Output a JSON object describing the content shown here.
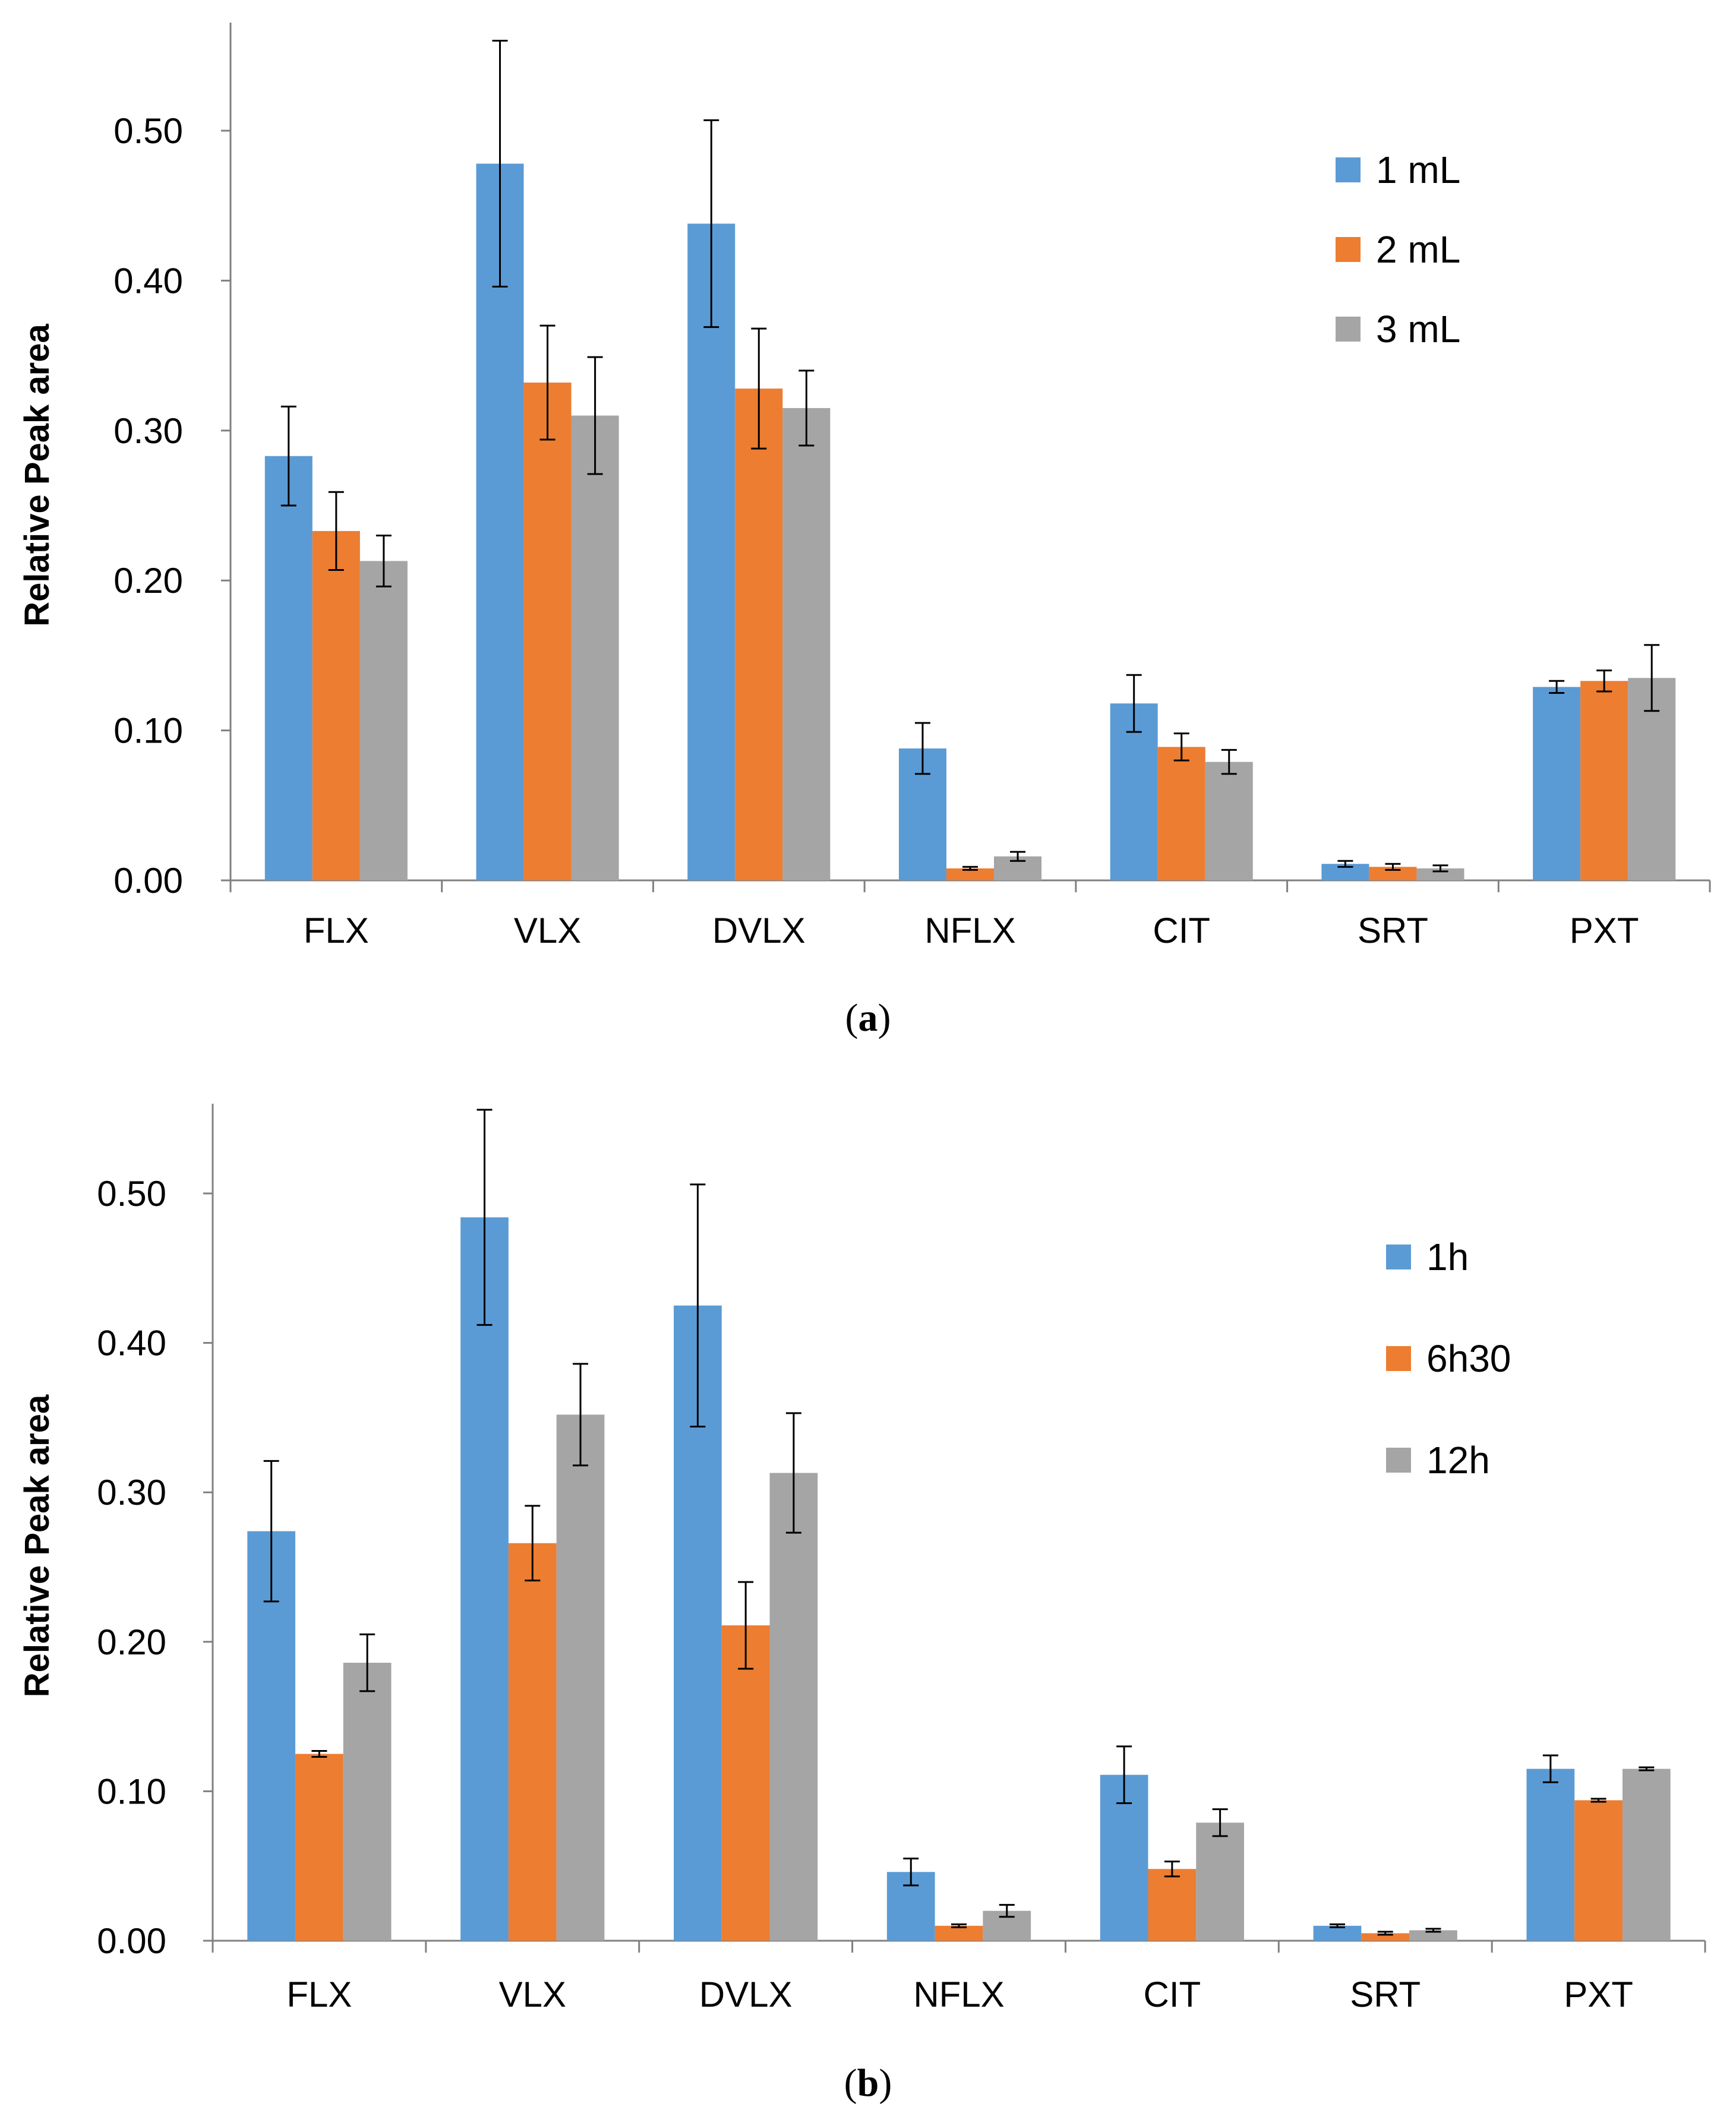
{
  "chart_data": [
    {
      "type": "bar",
      "panel": "a",
      "caption": {
        "open": "(",
        "letter": "a",
        "close": ")"
      },
      "ylabel": "Relative Peak area",
      "xlabel": "",
      "ylim": [
        0,
        0.55
      ],
      "yticks": [
        "0.00",
        "0.10",
        "0.20",
        "0.30",
        "0.40",
        "0.50"
      ],
      "legend_position": "top-right",
      "categories": [
        "FLX",
        "VLX",
        "DVLX",
        "NFLX",
        "CIT",
        "SRT",
        "PXT"
      ],
      "series": [
        {
          "name": "1 mL",
          "color": "#5b9bd5",
          "values": [
            0.283,
            0.478,
            0.438,
            0.088,
            0.118,
            0.011,
            0.129
          ],
          "errors": [
            0.033,
            0.082,
            0.069,
            0.017,
            0.019,
            0.002,
            0.004
          ]
        },
        {
          "name": "2 mL",
          "color": "#ed7d31",
          "values": [
            0.233,
            0.332,
            0.328,
            0.008,
            0.089,
            0.009,
            0.133
          ],
          "errors": [
            0.026,
            0.038,
            0.04,
            0.001,
            0.009,
            0.002,
            0.007
          ]
        },
        {
          "name": "3 mL",
          "color": "#a5a5a5",
          "values": [
            0.213,
            0.31,
            0.315,
            0.016,
            0.079,
            0.008,
            0.135
          ],
          "errors": [
            0.017,
            0.039,
            0.025,
            0.003,
            0.008,
            0.002,
            0.022
          ]
        }
      ]
    },
    {
      "type": "bar",
      "panel": "b",
      "caption": {
        "open": "(",
        "letter": "b",
        "close": ")"
      },
      "ylabel": "Relative Peak area",
      "xlabel": "",
      "ylim": [
        0,
        0.55
      ],
      "yticks": [
        "0.00",
        "0.10",
        "0.20",
        "0.30",
        "0.40",
        "0.50"
      ],
      "legend_position": "top-right",
      "categories": [
        "FLX",
        "VLX",
        "DVLX",
        "NFLX",
        "CIT",
        "SRT",
        "PXT"
      ],
      "series": [
        {
          "name": "1h",
          "color": "#5b9bd5",
          "values": [
            0.274,
            0.484,
            0.425,
            0.046,
            0.111,
            0.01,
            0.115
          ],
          "errors": [
            0.047,
            0.072,
            0.081,
            0.009,
            0.019,
            0.001,
            0.009
          ]
        },
        {
          "name": "6h30",
          "color": "#ed7d31",
          "values": [
            0.125,
            0.266,
            0.211,
            0.01,
            0.048,
            0.005,
            0.094
          ],
          "errors": [
            0.002,
            0.025,
            0.029,
            0.001,
            0.005,
            0.001,
            0.001
          ]
        },
        {
          "name": "12h",
          "color": "#a5a5a5",
          "values": [
            0.186,
            0.352,
            0.313,
            0.02,
            0.079,
            0.007,
            0.115
          ],
          "errors": [
            0.019,
            0.034,
            0.04,
            0.004,
            0.009,
            0.001,
            0.001
          ]
        }
      ]
    }
  ]
}
